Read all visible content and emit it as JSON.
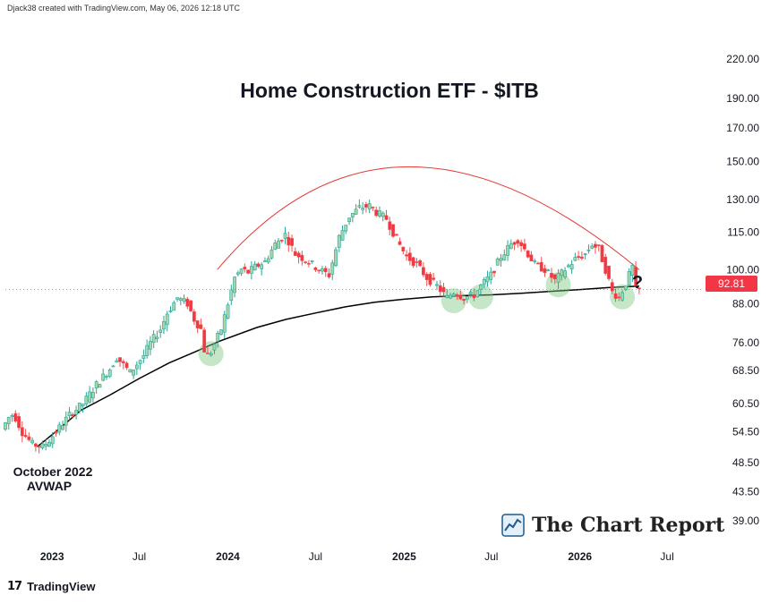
{
  "credit": "Djack38 created with TradingView.com, May 06, 2026 12:18 UTC",
  "brand": {
    "logo": "17",
    "name": "TradingView"
  },
  "report": {
    "name": "The Chart Report",
    "icon": "chart-report-logo-icon"
  },
  "colors": {
    "up": "#26a69a",
    "up_fill": "#a5d6a7",
    "down": "#ef5350",
    "down_fill": "#f23645",
    "avwap": "#000000",
    "arc": "#e53935",
    "highlight": "#81c784"
  },
  "chart_data": {
    "type": "candlestick",
    "title": "Home Construction ETF - $ITB",
    "annotation": "?",
    "avwap_label": [
      "October 2022",
      "AVWAP"
    ],
    "y_scale": "log",
    "y_ticks": [
      "220.00",
      "190.00",
      "170.00",
      "150.00",
      "130.00",
      "115.00",
      "100.00",
      "88.00",
      "76.00",
      "68.50",
      "60.50",
      "54.50",
      "48.50",
      "43.50",
      "39.00"
    ],
    "x_ticks": [
      "2023",
      "Jul",
      "2024",
      "Jul",
      "2025",
      "Jul",
      "2026",
      "Jul"
    ],
    "x_range": [
      "2022-09-26",
      "2026-08-20"
    ],
    "y_range": [
      36.5,
      245
    ],
    "last_price": "92.81",
    "price_path": [
      [
        "2022-09-26",
        55.0
      ],
      [
        "2022-10-10",
        57.5
      ],
      [
        "2022-10-20",
        58.3
      ],
      [
        "2022-11-07",
        54.4
      ],
      [
        "2022-11-28",
        52.0
      ],
      [
        "2022-12-19",
        51.5
      ],
      [
        "2023-01-02",
        52.8
      ],
      [
        "2023-02-13",
        58.0
      ],
      [
        "2023-03-13",
        60.5
      ],
      [
        "2023-04-10",
        65.0
      ],
      [
        "2023-05-08",
        69.0
      ],
      [
        "2023-05-22",
        72.0
      ],
      [
        "2023-06-05",
        70.0
      ],
      [
        "2023-06-19",
        68.0
      ],
      [
        "2023-07-17",
        72.5
      ],
      [
        "2023-07-31",
        76.0
      ],
      [
        "2023-08-21",
        80.0
      ],
      [
        "2023-09-04",
        85.0
      ],
      [
        "2023-09-25",
        90.0
      ],
      [
        "2023-10-16",
        88.0
      ],
      [
        "2023-10-30",
        83.0
      ],
      [
        "2023-11-13",
        80.0
      ],
      [
        "2023-11-20",
        74.0
      ],
      [
        "2023-11-27",
        72.5
      ],
      [
        "2023-12-04",
        73.5
      ],
      [
        "2023-12-25",
        80.0
      ],
      [
        "2024-01-08",
        88.0
      ],
      [
        "2024-01-22",
        97.0
      ],
      [
        "2024-02-05",
        100.0
      ],
      [
        "2024-02-19",
        99.0
      ],
      [
        "2024-03-04",
        101.0
      ],
      [
        "2024-03-25",
        103.0
      ],
      [
        "2024-04-15",
        110.0
      ],
      [
        "2024-05-06",
        114.0
      ],
      [
        "2024-05-27",
        106.0
      ],
      [
        "2024-06-24",
        103.0
      ],
      [
        "2024-07-15",
        100.0
      ],
      [
        "2024-08-05",
        98.0
      ],
      [
        "2024-08-26",
        113.0
      ],
      [
        "2024-09-16",
        122.0
      ],
      [
        "2024-10-07",
        126.0
      ],
      [
        "2024-10-28",
        127.0
      ],
      [
        "2024-11-11",
        124.0
      ],
      [
        "2024-12-02",
        121.0
      ],
      [
        "2024-12-23",
        112.0
      ],
      [
        "2025-01-13",
        105.0
      ],
      [
        "2025-02-03",
        102.0
      ],
      [
        "2025-02-24",
        97.0
      ],
      [
        "2025-03-17",
        94.0
      ],
      [
        "2025-04-07",
        90.0
      ],
      [
        "2025-04-21",
        92.0
      ],
      [
        "2025-05-12",
        90.0
      ],
      [
        "2025-06-02",
        91.0
      ],
      [
        "2025-06-16",
        94.0
      ],
      [
        "2025-07-07",
        98.0
      ],
      [
        "2025-07-28",
        105.0
      ],
      [
        "2025-08-18",
        110.0
      ],
      [
        "2025-09-01",
        112.0
      ],
      [
        "2025-09-22",
        106.0
      ],
      [
        "2025-10-06",
        102.0
      ],
      [
        "2025-10-27",
        100.0
      ],
      [
        "2025-11-17",
        96.0
      ],
      [
        "2025-12-08",
        100.0
      ],
      [
        "2025-12-29",
        104.0
      ],
      [
        "2026-01-19",
        106.0
      ],
      [
        "2026-02-02",
        110.0
      ],
      [
        "2026-02-16",
        108.0
      ],
      [
        "2026-03-02",
        100.0
      ],
      [
        "2026-03-16",
        92.0
      ],
      [
        "2026-03-30",
        90.0
      ],
      [
        "2026-04-13",
        95.0
      ],
      [
        "2026-04-27",
        101.0
      ],
      [
        "2026-05-04",
        92.8
      ]
    ],
    "avwap": [
      [
        "2022-12-01",
        51.5
      ],
      [
        "2023-01-15",
        55.0
      ],
      [
        "2023-03-01",
        59.0
      ],
      [
        "2023-05-01",
        62.5
      ],
      [
        "2023-07-01",
        66.5
      ],
      [
        "2023-09-01",
        70.5
      ],
      [
        "2023-10-25",
        73.5
      ],
      [
        "2023-12-15",
        76.5
      ],
      [
        "2024-03-01",
        80.5
      ],
      [
        "2024-05-01",
        83.0
      ],
      [
        "2024-07-01",
        85.0
      ],
      [
        "2024-09-01",
        87.0
      ],
      [
        "2024-11-01",
        88.5
      ],
      [
        "2025-01-01",
        89.5
      ],
      [
        "2025-03-01",
        90.3
      ],
      [
        "2025-05-01",
        90.7
      ],
      [
        "2025-07-01",
        91.0
      ],
      [
        "2025-09-01",
        91.5
      ],
      [
        "2025-11-01",
        92.2
      ],
      [
        "2026-01-01",
        92.8
      ],
      [
        "2026-03-01",
        93.5
      ],
      [
        "2026-05-04",
        94.0
      ]
    ],
    "arc": {
      "start": [
        "2023-12-10",
        100.0
      ],
      "peak": [
        "2025-01-12",
        147.0
      ],
      "end": [
        "2026-05-04",
        100.0
      ]
    },
    "highlights": [
      [
        "2023-11-27",
        73.0
      ],
      [
        "2025-04-14",
        89.0
      ],
      [
        "2025-06-09",
        90.3
      ],
      [
        "2025-11-17",
        94.5
      ],
      [
        "2026-03-30",
        90.3
      ]
    ]
  }
}
